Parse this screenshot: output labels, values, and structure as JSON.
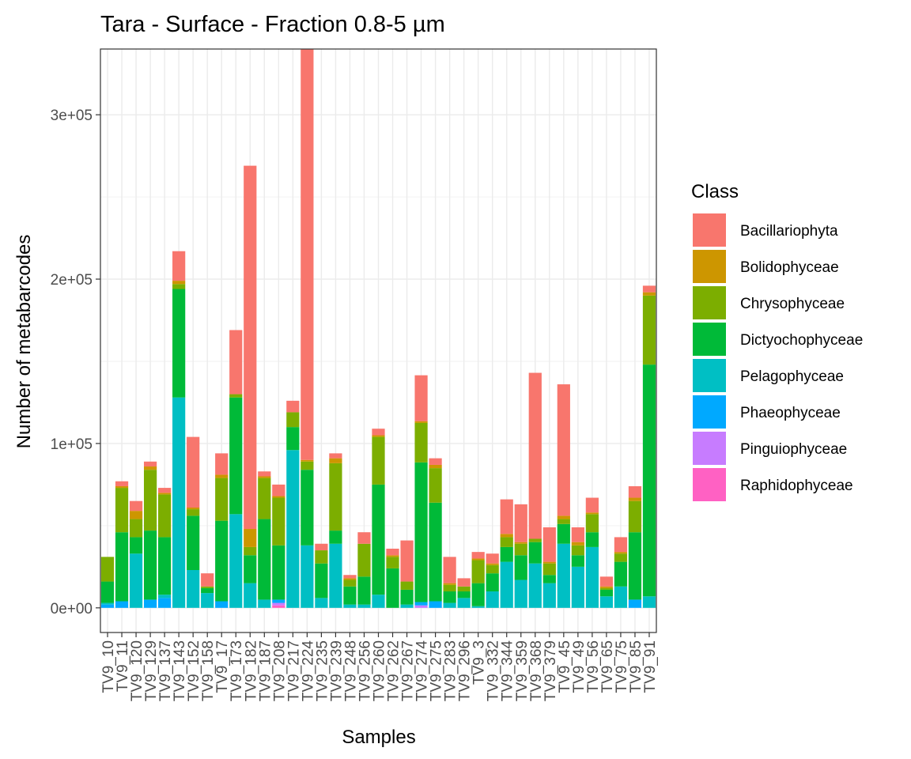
{
  "chart_data": {
    "type": "bar",
    "stacked": true,
    "title": "Tara - Surface - Fraction 0.8-5 µm",
    "xlabel": "Samples",
    "ylabel": "Number of metabarcodes",
    "ylim": [
      -15000,
      340000
    ],
    "yticks": [
      0,
      100000,
      200000,
      300000
    ],
    "ytick_labels": [
      "0e+00",
      "1e+05",
      "2e+05",
      "3e+05"
    ],
    "grid": true,
    "legend": {
      "title": "Class",
      "position": "right"
    },
    "categories": [
      "TV9_10",
      "TV9_11",
      "TV9_120",
      "TV9_129",
      "TV9_137",
      "TV9_143",
      "TV9_152",
      "TV9_158",
      "TV9_17",
      "TV9_173",
      "TV9_182",
      "TV9_187",
      "TV9_208",
      "TV9_217",
      "TV9_224",
      "TV9_235",
      "TV9_239",
      "TV9_248",
      "TV9_256",
      "TV9_260",
      "TV9_262",
      "TV9_267",
      "TV9_274",
      "TV9_275",
      "TV9_283",
      "TV9_296",
      "TV9_3",
      "TV9_332",
      "TV9_344",
      "TV9_359",
      "TV9_368",
      "TV9_379",
      "TV9_45",
      "TV9_49",
      "TV9_56",
      "TV9_65",
      "TV9_75",
      "TV9_85",
      "TV9_91"
    ],
    "series": [
      {
        "name": "Raphidophyceae",
        "color": "#FF61C3",
        "values": [
          0,
          0,
          0,
          0,
          0,
          0,
          0,
          0,
          0,
          0,
          0,
          0,
          1500,
          0,
          0,
          0,
          0,
          0,
          0,
          0,
          0,
          0,
          0,
          0,
          0,
          0,
          0,
          0,
          0,
          0,
          0,
          0,
          0,
          0,
          0,
          0,
          0,
          0,
          0
        ]
      },
      {
        "name": "Pinguiophyceae",
        "color": "#C77CFF",
        "values": [
          0,
          0,
          0,
          0,
          0,
          0,
          0,
          0,
          0,
          0,
          0,
          0,
          1500,
          0,
          0,
          0,
          0,
          0,
          0,
          0,
          0,
          0,
          1500,
          0,
          0,
          0,
          0,
          0,
          0,
          0,
          0,
          0,
          0,
          0,
          0,
          0,
          0,
          0,
          0
        ]
      },
      {
        "name": "Phaeophyceae",
        "color": "#00A9FF",
        "values": [
          2000,
          4000,
          0,
          5000,
          6000,
          0,
          0,
          0,
          4000,
          0,
          0,
          0,
          2000,
          0,
          0,
          0,
          0,
          0,
          0,
          0,
          0,
          0,
          2000,
          4000,
          0,
          0,
          0,
          0,
          0,
          0,
          0,
          0,
          0,
          0,
          0,
          0,
          0,
          5000,
          0
        ]
      },
      {
        "name": "Pelagophyceae",
        "color": "#00BFC4",
        "values": [
          1000,
          0,
          33000,
          0,
          2000,
          128000,
          23000,
          9000,
          0,
          57000,
          15000,
          5000,
          0,
          96000,
          38000,
          6000,
          39000,
          2000,
          2000,
          8000,
          0,
          2000,
          0,
          0,
          3000,
          6000,
          1000,
          10000,
          28000,
          17000,
          27000,
          15000,
          39000,
          25000,
          37000,
          7000,
          13000,
          0,
          7000
        ]
      },
      {
        "name": "Dictyochophyceae",
        "color": "#00BA38",
        "values": [
          13000,
          42000,
          10000,
          42000,
          35000,
          66000,
          33000,
          3000,
          49000,
          71000,
          17000,
          49000,
          33000,
          14000,
          46000,
          21000,
          8000,
          11000,
          17000,
          67000,
          24000,
          9000,
          85000,
          60000,
          7000,
          4000,
          14000,
          11000,
          9000,
          15000,
          13000,
          5000,
          12000,
          7000,
          9000,
          4000,
          15000,
          41000,
          141000
        ]
      },
      {
        "name": "Chrysophyceae",
        "color": "#7CAE00",
        "values": [
          15000,
          27000,
          11000,
          37000,
          26000,
          3000,
          4000,
          1000,
          26000,
          2000,
          5000,
          25000,
          29000,
          9000,
          5000,
          8000,
          41000,
          4000,
          20000,
          29000,
          7000,
          5000,
          24000,
          21000,
          4000,
          3000,
          14000,
          5000,
          6000,
          7000,
          2000,
          7000,
          3000,
          6000,
          11000,
          1000,
          5000,
          19000,
          42000
        ]
      },
      {
        "name": "Bolidophyceae",
        "color": "#CD9600",
        "values": [
          0,
          1000,
          5000,
          2000,
          1000,
          2000,
          1000,
          0,
          2000,
          0,
          11000,
          1000,
          1000,
          0,
          1000,
          0,
          3000,
          1000,
          0,
          1000,
          1000,
          0,
          1000,
          2000,
          1000,
          0,
          1000,
          1000,
          2000,
          1000,
          0,
          1000,
          2000,
          2000,
          1000,
          1000,
          1000,
          2000,
          2000
        ]
      },
      {
        "name": "Bacillariophyta",
        "color": "#F8766D",
        "values": [
          0,
          3000,
          6000,
          3000,
          3000,
          18000,
          43000,
          8000,
          13000,
          39000,
          221000,
          3000,
          7000,
          7000,
          250000,
          4000,
          3000,
          2000,
          7000,
          4000,
          4000,
          25000,
          28000,
          4000,
          16000,
          5000,
          4000,
          6000,
          21000,
          23000,
          101000,
          21000,
          80000,
          9000,
          9000,
          6000,
          9000,
          7000,
          4000
        ]
      }
    ],
    "legend_order": [
      "Bacillariophyta",
      "Bolidophyceae",
      "Chrysophyceae",
      "Dictyochophyceae",
      "Pelagophyceae",
      "Phaeophyceae",
      "Pinguiophyceae",
      "Raphidophyceae"
    ]
  }
}
